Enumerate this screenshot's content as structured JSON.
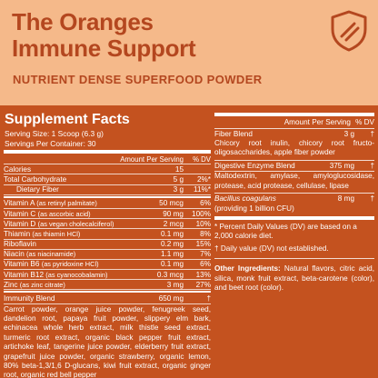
{
  "header": {
    "title_line1": "The Oranges",
    "title_line2": "Immune Support",
    "subtitle": "NUTRIENT DENSE SUPERFOOD POWDER"
  },
  "colors": {
    "accent": "#b4471f",
    "panel": "#c4521f",
    "background": "#f5b98a"
  },
  "icons": {
    "badge": "shield-icon"
  },
  "facts": {
    "title": "Supplement Facts",
    "serving_size": "Serving Size: 1 Scoop (6.3 g)",
    "servings_per_container": "Servings Per Container: 30",
    "col_amount": "Amount Per Serving",
    "col_dv": "% DV",
    "calories": {
      "name": "Calories",
      "amount": "15",
      "dv": ""
    },
    "rows": [
      {
        "name": "Total Carbohydrate",
        "amount": "5 g",
        "dv": "2%*"
      },
      {
        "name": "Dietary Fiber",
        "amount": "3 g",
        "dv": "11%*"
      },
      {
        "name": "Vitamin A",
        "detail": "(as retinyl palmitate)",
        "amount": "50 mcg",
        "dv": "6%"
      },
      {
        "name": "Vitamin C",
        "detail": "(as ascorbic acid)",
        "amount": "90 mg",
        "dv": "100%"
      },
      {
        "name": "Vitamin D",
        "detail": "(as vegan cholecalciferol)",
        "amount": "2 mcg",
        "dv": "10%"
      },
      {
        "name": "Thiamin",
        "detail": "(as thiamin HCl)",
        "amount": "0.1 mg",
        "dv": "8%"
      },
      {
        "name": "Riboflavin",
        "detail": "",
        "amount": "0.2 mg",
        "dv": "15%"
      },
      {
        "name": "Niacin",
        "detail": "(as niacinamide)",
        "amount": "1.1 mg",
        "dv": "7%"
      },
      {
        "name": "Vitamin B6",
        "detail": "(as pyridoxine HCl)",
        "amount": "0.1 mg",
        "dv": "6%"
      },
      {
        "name": "Vitamin B12",
        "detail": "(as cyanocobalamin)",
        "amount": "0.3 mcg",
        "dv": "13%"
      },
      {
        "name": "Zinc",
        "detail": "(as zinc citrate)",
        "amount": "3 mg",
        "dv": "27%"
      }
    ],
    "immunity_blend": {
      "name": "Immunity Blend",
      "amount": "650 mg",
      "dv": "†"
    },
    "immunity_ingredients": "Carrot powder, orange juice powder, fenugreek seed, dandelion root, papaya fruit powder, slippery elm bark, echinacea whole herb extract, milk thistle seed extract, turmeric root extract, organic black pepper fruit extract, artichoke leaf, tangerine juice powder, elderberry fruit extract, grapefruit juice powder, organic strawberry, organic lemon, 80% beta-1,3/1,6 D-glucans, kiwi fruit extract, organic ginger root, organic red bell pepper"
  },
  "right": {
    "col_amount": "Amount Per Serving",
    "col_dv": "% DV",
    "fiber_blend": {
      "name": "Fiber Blend",
      "amount": "3 g",
      "dv": "†"
    },
    "fiber_ingredients": "Chicory root inulin, chicory root fructo-oligosaccharides, apple fiber powder",
    "enzyme_blend": {
      "name": "Digestive Enzyme Blend",
      "amount": "375 mg",
      "dv": "†"
    },
    "enzyme_ingredients": "Maltodextrin, amylase, amyloglucosidase, protease, acid protease, cellulase, lipase",
    "bacillus": {
      "name": "Bacillus coagulans",
      "sub": "(providing 1 billion CFU)",
      "amount": "8 mg",
      "dv": "†"
    },
    "note1": "* Percent Daily Values (DV) are based on a 2,000 calorie diet.",
    "note2": "† Daily value (DV) not established.",
    "other_label": "Other Ingredients:",
    "other_text": " Natural flavors, citric acid, silica, monk fruit extract, beta-carotene (color), and beet root (color)."
  }
}
